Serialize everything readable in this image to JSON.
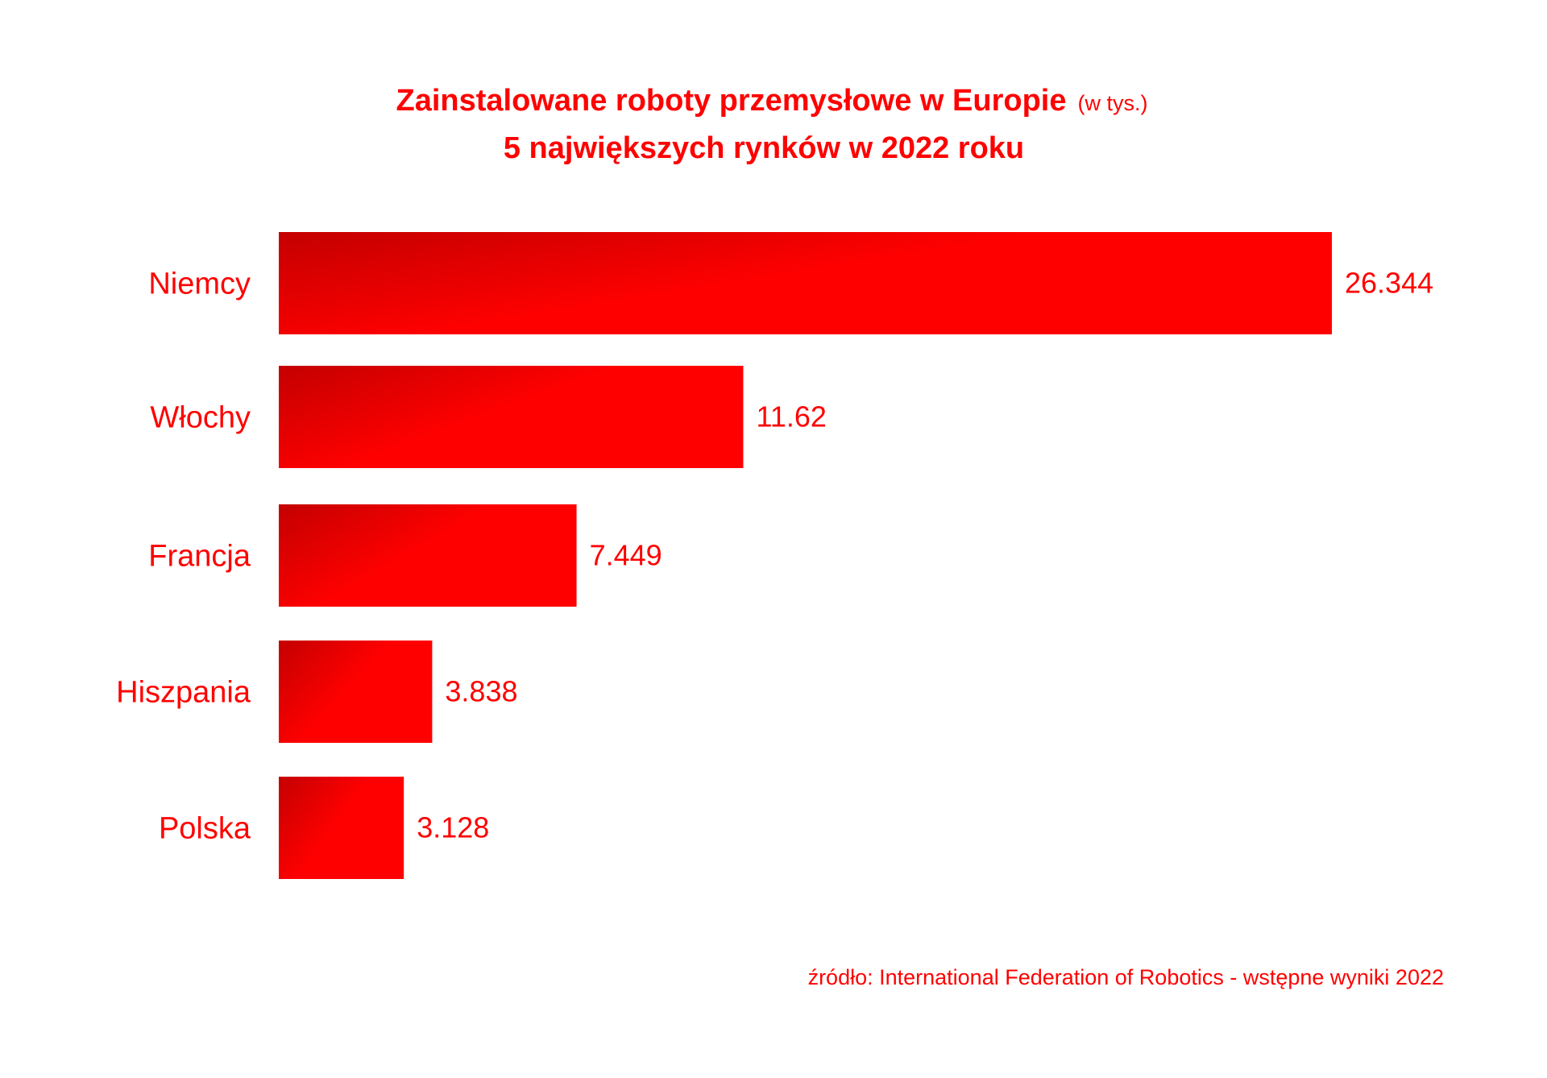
{
  "title": "Zainstalowane roboty przemysłowe w Europie",
  "title_unit": "(w tys.)",
  "subtitle": "5 największych rynków w 2022 roku",
  "source": "źródło: International Federation of Robotics - wstępne wyniki 2022",
  "colors": {
    "text": "#ff0000",
    "bar_dark": "#c40000",
    "bar_light": "#ff0000"
  },
  "chart_data": {
    "type": "bar",
    "orientation": "horizontal",
    "title": "Zainstalowane roboty przemysłowe w Europie (w tys.) — 5 największych rynków w 2022 roku",
    "categories": [
      "Niemcy",
      "Włochy",
      "Francja",
      "Hiszpania",
      "Polska"
    ],
    "values": [
      26.344,
      11.62,
      7.449,
      3.838,
      3.128
    ],
    "value_labels": [
      "26.344",
      "11.62",
      "7.449",
      "3.838",
      "3.128"
    ],
    "xlim": [
      0,
      26.344
    ],
    "grid": false,
    "legend": "none"
  }
}
